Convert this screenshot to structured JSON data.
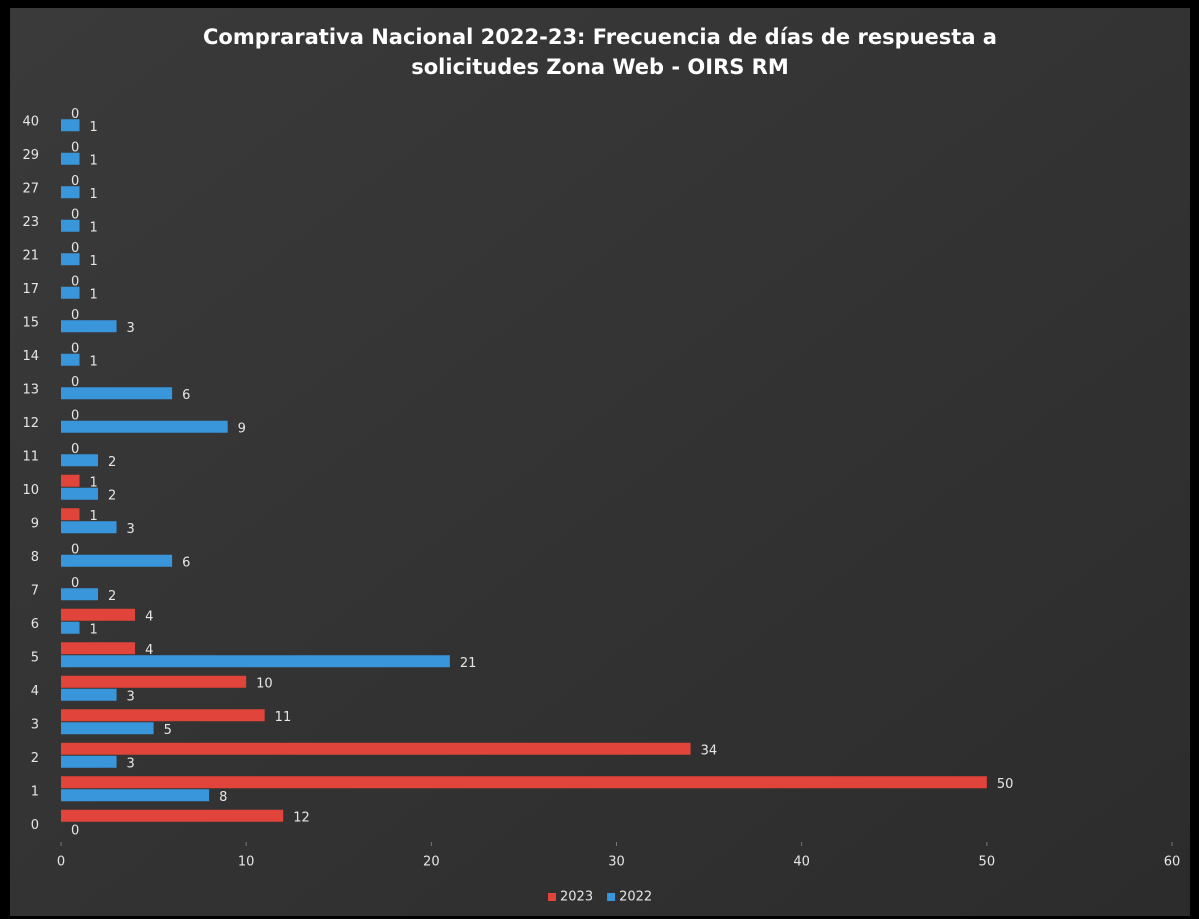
{
  "chart_data": {
    "type": "hbar",
    "title": "Comprarativa Nacional 2022-23: Frecuencia de días de respuesta a solicitudes Zona Web - OIRS RM",
    "categories": [
      "0",
      "1",
      "2",
      "3",
      "4",
      "5",
      "6",
      "7",
      "8",
      "9",
      "10",
      "11",
      "12",
      "13",
      "14",
      "15",
      "17",
      "21",
      "23",
      "27",
      "29",
      "40"
    ],
    "series": [
      {
        "name": "2023",
        "color": "#e0443a",
        "values": [
          12,
          50,
          34,
          11,
          10,
          4,
          4,
          0,
          0,
          1,
          1,
          0,
          0,
          0,
          0,
          0,
          0,
          0,
          0,
          0,
          0,
          0
        ]
      },
      {
        "name": "2022",
        "color": "#3a96db",
        "values": [
          0,
          8,
          3,
          5,
          3,
          21,
          1,
          2,
          6,
          3,
          2,
          2,
          9,
          6,
          1,
          3,
          1,
          1,
          1,
          1,
          1,
          1
        ]
      }
    ],
    "xlim": [
      0,
      60
    ],
    "xticks": [
      0,
      10,
      20,
      30,
      40,
      50,
      60
    ],
    "legend": "bottom",
    "grid": false
  }
}
